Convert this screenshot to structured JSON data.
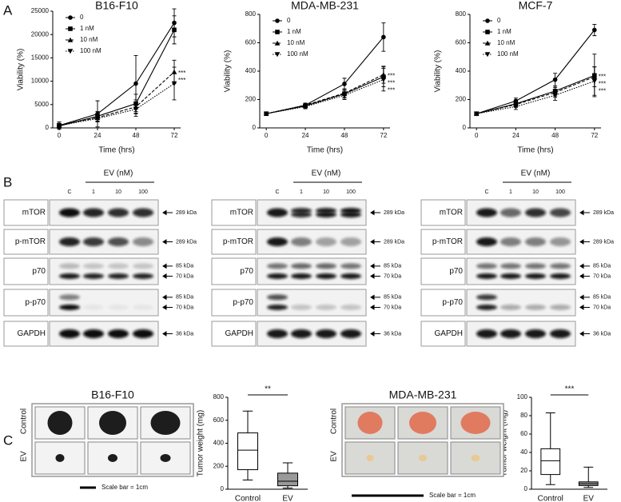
{
  "panel_labels": [
    "A",
    "B",
    "C"
  ],
  "chart_data": [
    {
      "type": "line",
      "title": "B16-F10",
      "xlabel": "Time (hrs)",
      "ylabel": "Viability (%)",
      "x": [
        0,
        24,
        48,
        72
      ],
      "xlim": [
        -4,
        76
      ],
      "xticks": [
        0,
        24,
        48,
        72
      ],
      "ylim": [
        0,
        25000
      ],
      "yticks": [
        0,
        5000,
        10000,
        15000,
        20000,
        25000
      ],
      "series": [
        {
          "name": "0",
          "color": "#000000",
          "marker": "circle",
          "dash": "solid",
          "values": [
            500,
            3000,
            9500,
            22500
          ],
          "errors": [
            800,
            2800,
            6000,
            3000
          ]
        },
        {
          "name": "1 nM",
          "color": "#000000",
          "marker": "square",
          "dash": "solid",
          "values": [
            400,
            2500,
            5200,
            21000
          ],
          "errors": [
            500,
            1000,
            2000,
            3000
          ]
        },
        {
          "name": "10 nM",
          "color": "#000000",
          "marker": "triangle",
          "dash": "dashed",
          "values": [
            600,
            2200,
            4500,
            12000
          ],
          "errors": [
            400,
            800,
            1500,
            2500
          ]
        },
        {
          "name": "100 nM",
          "color": "#000000",
          "marker": "triangle-down",
          "dash": "dotted",
          "values": [
            500,
            2000,
            4000,
            9500
          ],
          "errors": [
            400,
            700,
            1500,
            3500
          ]
        }
      ],
      "annotations": [
        "***",
        "***"
      ]
    },
    {
      "type": "line",
      "title": "MDA-MB-231",
      "xlabel": "Time (hrs)",
      "ylabel": "Viability (%)",
      "x": [
        0,
        24,
        48,
        72
      ],
      "xlim": [
        -4,
        76
      ],
      "xticks": [
        0,
        24,
        48,
        72
      ],
      "ylim": [
        0,
        800
      ],
      "yticks": [
        0,
        200,
        400,
        600,
        800
      ],
      "series": [
        {
          "name": "0",
          "color": "#000000",
          "marker": "circle",
          "dash": "solid",
          "values": [
            100,
            160,
            310,
            640
          ],
          "errors": [
            5,
            15,
            40,
            100
          ]
        },
        {
          "name": "1 nM",
          "color": "#000000",
          "marker": "square",
          "dash": "solid",
          "values": [
            100,
            155,
            240,
            360
          ],
          "errors": [
            5,
            15,
            30,
            70
          ]
        },
        {
          "name": "10 nM",
          "color": "#000000",
          "marker": "triangle",
          "dash": "dashed",
          "values": [
            100,
            160,
            245,
            375
          ],
          "errors": [
            5,
            15,
            30,
            60
          ]
        },
        {
          "name": "100 nM",
          "color": "#000000",
          "marker": "triangle-down",
          "dash": "dotted",
          "values": [
            100,
            150,
            230,
            340
          ],
          "errors": [
            5,
            15,
            30,
            80
          ]
        }
      ],
      "annotations": [
        "***",
        "***",
        "***"
      ]
    },
    {
      "type": "line",
      "title": "MCF-7",
      "xlabel": "Time (hrs)",
      "ylabel": "Viability (%)",
      "x": [
        0,
        24,
        48,
        72
      ],
      "xlim": [
        -4,
        76
      ],
      "xticks": [
        0,
        24,
        48,
        72
      ],
      "ylim": [
        0,
        800
      ],
      "yticks": [
        0,
        200,
        400,
        600,
        800
      ],
      "series": [
        {
          "name": "0",
          "color": "#000000",
          "marker": "circle",
          "dash": "solid",
          "values": [
            100,
            190,
            340,
            690
          ],
          "errors": [
            5,
            20,
            45,
            40
          ]
        },
        {
          "name": "1 nM",
          "color": "#000000",
          "marker": "square",
          "dash": "solid",
          "values": [
            100,
            170,
            260,
            370
          ],
          "errors": [
            5,
            20,
            35,
            150
          ]
        },
        {
          "name": "10 nM",
          "color": "#000000",
          "marker": "triangle",
          "dash": "dashed",
          "values": [
            100,
            165,
            250,
            360
          ],
          "errors": [
            5,
            20,
            35,
            70
          ]
        },
        {
          "name": "100 nM",
          "color": "#000000",
          "marker": "triangle-down",
          "dash": "dotted",
          "values": [
            100,
            150,
            230,
            330
          ],
          "errors": [
            5,
            20,
            35,
            100
          ]
        }
      ],
      "annotations": [
        "***",
        "***",
        "***"
      ]
    },
    {
      "type": "box",
      "ylabel": "Tumor weight (mg)",
      "categories": [
        "Control",
        "EV"
      ],
      "values": [
        [
          80,
          170,
          340,
          490,
          680
        ],
        [
          10,
          30,
          70,
          140,
          230
        ]
      ],
      "colors": [
        "#ffffff",
        "#999999"
      ],
      "ylim": [
        0,
        800
      ],
      "yticks": [
        0,
        200,
        400,
        600,
        800
      ],
      "significance": "**"
    },
    {
      "type": "box",
      "ylabel": "Tumor weight (mg)",
      "categories": [
        "Control",
        "EV"
      ],
      "values": [
        [
          5,
          16,
          31,
          44,
          83
        ],
        [
          2,
          4,
          6,
          8,
          24
        ]
      ],
      "colors": [
        "#ffffff",
        "#999999"
      ],
      "ylim": [
        0,
        100
      ],
      "yticks": [
        0,
        20,
        40,
        60,
        80,
        100
      ],
      "significance": "***"
    }
  ],
  "blots": [
    {
      "header": "EV (nM)",
      "lanes": [
        "C",
        "1",
        "10",
        "100"
      ],
      "rows": [
        {
          "label": "mTOR",
          "sizes": [
            "289 kDa"
          ]
        },
        {
          "label": "p-mTOR",
          "sizes": [
            "289 kDa"
          ]
        },
        {
          "label": "p70",
          "sizes": [
            "85 kDa",
            "70 kDa"
          ]
        },
        {
          "label": "p-p70",
          "sizes": [
            "85 kDa",
            "70 kDa"
          ]
        },
        {
          "label": "GAPDH",
          "sizes": [
            "36 kDa"
          ]
        }
      ]
    },
    {
      "header": "EV (nM)",
      "lanes": [
        "C",
        "1",
        "10",
        "100"
      ],
      "rows": [
        {
          "label": "mTOR",
          "sizes": [
            "289 kDa"
          ]
        },
        {
          "label": "p-mTOR",
          "sizes": [
            "289 kDa"
          ]
        },
        {
          "label": "p70",
          "sizes": [
            "85 kDa",
            "70 kDa"
          ]
        },
        {
          "label": "p-p70",
          "sizes": [
            "85 kDa",
            "70 kDa"
          ]
        },
        {
          "label": "GAPDH",
          "sizes": [
            "36 kDa"
          ]
        }
      ]
    },
    {
      "header": "EV (nM)",
      "lanes": [
        "C",
        "1",
        "10",
        "100"
      ],
      "rows": [
        {
          "label": "mTOR",
          "sizes": [
            "289 kDa"
          ]
        },
        {
          "label": "p-mTOR",
          "sizes": [
            "289 kDa"
          ]
        },
        {
          "label": "p70",
          "sizes": [
            "85 kDa",
            "70 kDa"
          ]
        },
        {
          "label": "p-p70",
          "sizes": [
            "85 kDa",
            "70 kDa"
          ]
        },
        {
          "label": "GAPDH",
          "sizes": [
            "36 kDa"
          ]
        }
      ]
    }
  ],
  "tumor_panels": [
    {
      "title": "B16-F10",
      "rows": [
        "Control",
        "EV"
      ],
      "scale_bar": "Scale bar = 1cm"
    },
    {
      "title": "MDA-MB-231",
      "rows": [
        "Control",
        "EV"
      ],
      "scale_bar": "Scale bar = 1cm"
    }
  ]
}
